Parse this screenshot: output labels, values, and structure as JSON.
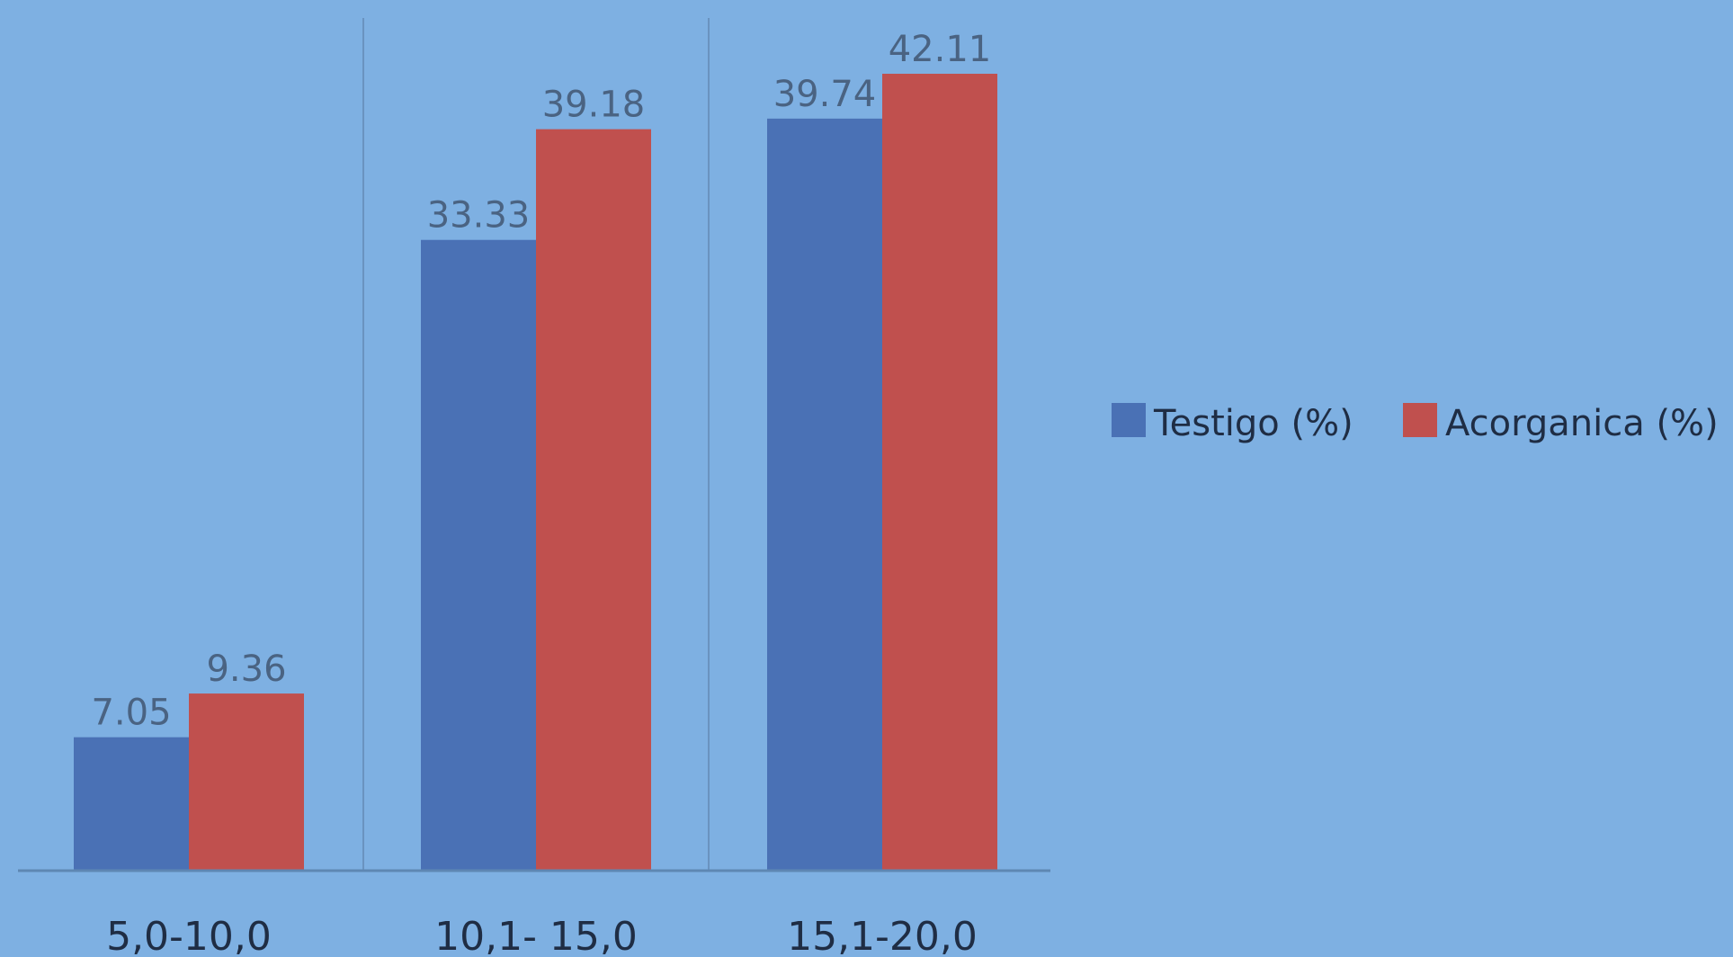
{
  "chart_data": {
    "type": "bar",
    "categories": [
      "5,0-10,0",
      "10,1- 15,0",
      "15,1-20,0"
    ],
    "series": [
      {
        "name": "Testigo (%)",
        "values": [
          7.05,
          33.33,
          39.74
        ],
        "labels": [
          "7.05",
          "33.33",
          "39.74"
        ],
        "color": "#4a71b5"
      },
      {
        "name": "Acorganica (%)",
        "values": [
          9.36,
          39.18,
          42.11
        ],
        "labels": [
          "9.36",
          "39.18",
          "42.11"
        ],
        "color": "#c0504e"
      }
    ],
    "ylim": [
      0,
      42.11
    ],
    "grid": false,
    "legend_position": "right",
    "colors": {
      "background": "#7eb0e2",
      "axis": "#5e87b3",
      "separator": "#6a93c0"
    }
  }
}
